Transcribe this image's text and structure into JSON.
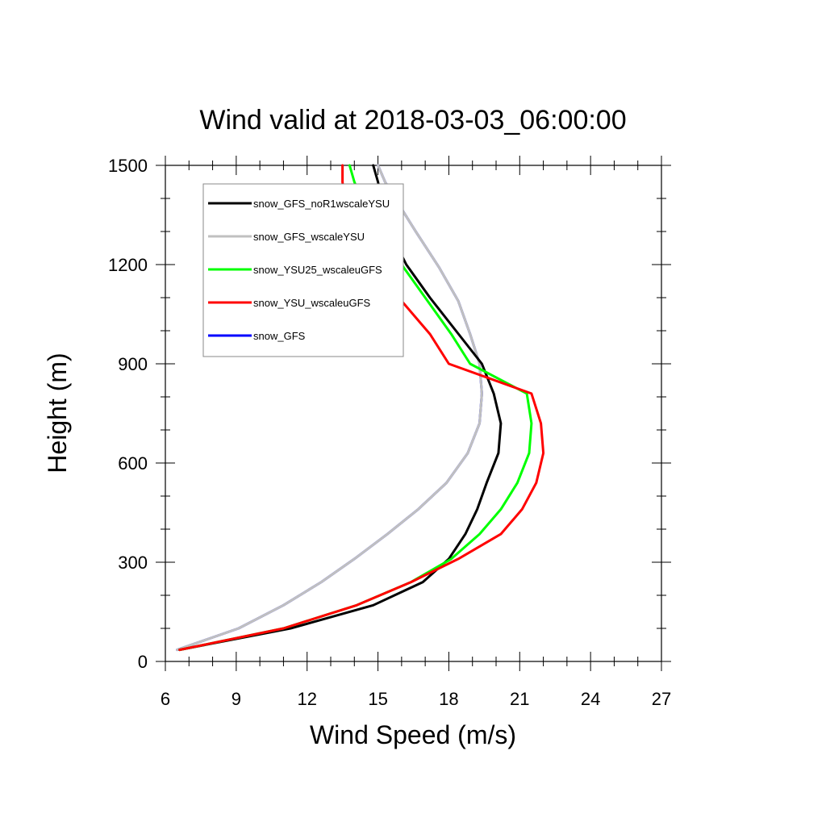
{
  "chart_data": {
    "type": "line",
    "title": "Wind valid at 2018-03-03_06:00:00",
    "xlabel": "Wind Speed (m/s)",
    "ylabel": "Height (m)",
    "xlim": [
      6,
      27
    ],
    "ylim": [
      0,
      1500
    ],
    "x_ticks": [
      6,
      9,
      12,
      15,
      18,
      21,
      24,
      27
    ],
    "y_ticks": [
      0,
      300,
      600,
      900,
      1200,
      1500
    ],
    "grid": false,
    "legend_position": "top-left",
    "series": [
      {
        "name": "snow_GFS",
        "color": "#0000ff",
        "x": [
          6.5,
          9.1,
          11.0,
          12.6,
          14.0,
          15.4,
          16.7,
          17.9,
          18.8,
          19.3,
          19.4,
          19.3,
          18.9,
          18.4,
          17.6,
          16.6,
          15.9,
          15.3,
          15.0
        ],
        "y": [
          35,
          100,
          170,
          240,
          310,
          385,
          460,
          540,
          630,
          720,
          810,
          900,
          990,
          1090,
          1190,
          1300,
          1380,
          1450,
          1500
        ]
      },
      {
        "name": "snow_GFS_wscaleYSU",
        "color": "#c0c0c0",
        "x": [
          6.5,
          9.1,
          11.0,
          12.6,
          14.0,
          15.4,
          16.7,
          17.9,
          18.8,
          19.3,
          19.4,
          19.3,
          18.9,
          18.4,
          17.6,
          16.6,
          15.9,
          15.3,
          15.0
        ],
        "y": [
          35,
          100,
          170,
          240,
          310,
          385,
          460,
          540,
          630,
          720,
          810,
          900,
          990,
          1090,
          1190,
          1300,
          1380,
          1450,
          1500
        ]
      },
      {
        "name": "snow_GFS_noR1wscaleYSU",
        "color": "#000000",
        "x": [
          6.6,
          11.3,
          14.8,
          16.9,
          18.0,
          18.7,
          19.2,
          19.6,
          20.1,
          20.2,
          19.9,
          19.4,
          18.3,
          17.2,
          16.2,
          15.5,
          15.2,
          15.0,
          14.8
        ],
        "y": [
          35,
          100,
          170,
          240,
          310,
          385,
          460,
          540,
          630,
          720,
          810,
          900,
          1000,
          1100,
          1200,
          1300,
          1380,
          1450,
          1500
        ]
      },
      {
        "name": "snow_YSU25_wscaleuGFS",
        "color": "#00ff00",
        "x": [
          6.6,
          11.0,
          14.1,
          16.4,
          18.1,
          19.3,
          20.2,
          20.9,
          21.4,
          21.5,
          21.3,
          18.9,
          18.1,
          17.1,
          16.1,
          15.1,
          14.4,
          14.0,
          13.8
        ],
        "y": [
          35,
          100,
          170,
          240,
          310,
          385,
          460,
          540,
          630,
          720,
          810,
          900,
          990,
          1090,
          1190,
          1300,
          1380,
          1450,
          1500
        ]
      },
      {
        "name": "snow_YSU_wscaleuGFS",
        "color": "#ff0000",
        "x": [
          6.6,
          11.0,
          14.1,
          16.4,
          18.4,
          20.2,
          21.1,
          21.7,
          22.0,
          21.9,
          21.5,
          18.0,
          17.2,
          16.0,
          14.8,
          14.0,
          13.6,
          13.5,
          13.5
        ],
        "y": [
          35,
          100,
          170,
          240,
          310,
          385,
          460,
          540,
          630,
          720,
          810,
          900,
          990,
          1090,
          1190,
          1300,
          1380,
          1450,
          1500
        ]
      }
    ],
    "legend_entries": [
      {
        "label": "snow_GFS_noR1wscaleYSU",
        "color": "#000000"
      },
      {
        "label": "snow_GFS_wscaleYSU",
        "color": "#c0c0c0"
      },
      {
        "label": "snow_YSU25_wscaleuGFS",
        "color": "#00ff00"
      },
      {
        "label": "snow_YSU_wscaleuGFS",
        "color": "#ff0000"
      },
      {
        "label": "snow_GFS",
        "color": "#0000ff"
      }
    ]
  }
}
